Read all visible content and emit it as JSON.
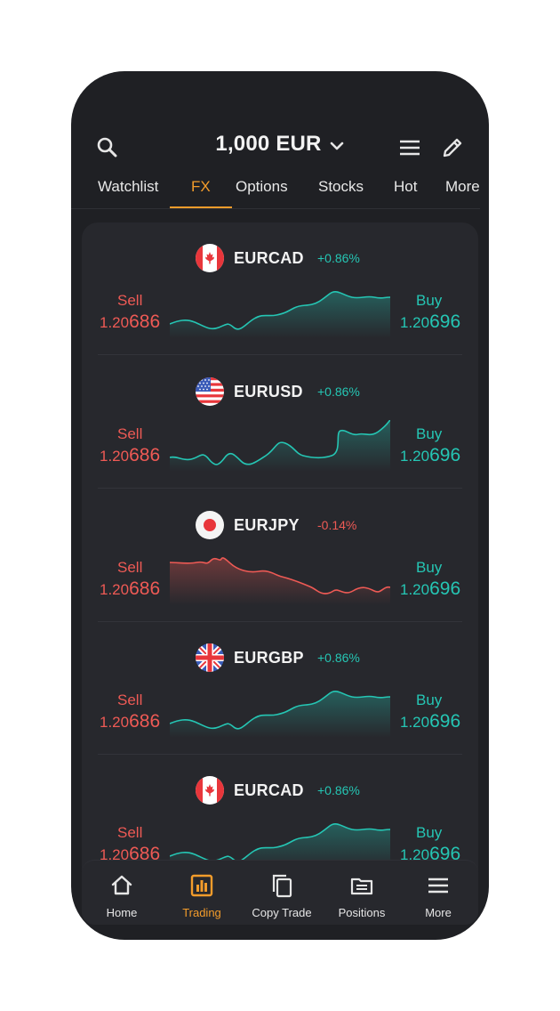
{
  "header": {
    "balance": "1,000 EUR",
    "icons": {
      "search": "search-icon",
      "menu": "menu-icon",
      "edit": "pencil-icon",
      "caret": "chevron-down-icon"
    }
  },
  "tabs": [
    {
      "label": "Watchlist"
    },
    {
      "label": "FX"
    },
    {
      "label": "Options"
    },
    {
      "label": "Stocks"
    },
    {
      "label": "Hot"
    },
    {
      "label": "More"
    }
  ],
  "active_tab": "FX",
  "pairs": [
    {
      "symbol": "EURCAD",
      "flag": "canada-flag-icon",
      "change": "+0.86%",
      "trend": "up",
      "sell_label": "Sell",
      "sell_small": "1.20",
      "sell_big": "686",
      "buy_label": "Buy",
      "buy_small": "1.20",
      "buy_big": "696"
    },
    {
      "symbol": "EURUSD",
      "flag": "usa-flag-icon",
      "change": "+0.86%",
      "trend": "up",
      "sell_label": "Sell",
      "sell_small": "1.20",
      "sell_big": "686",
      "buy_label": "Buy",
      "buy_small": "1.20",
      "buy_big": "696"
    },
    {
      "symbol": "EURJPY",
      "flag": "japan-flag-icon",
      "change": "-0.14%",
      "trend": "down",
      "sell_label": "Sell",
      "sell_small": "1.20",
      "sell_big": "686",
      "buy_label": "Buy",
      "buy_small": "1.20",
      "buy_big": "696"
    },
    {
      "symbol": "EURGBP",
      "flag": "uk-flag-icon",
      "change": "+0.86%",
      "trend": "up",
      "sell_label": "Sell",
      "sell_small": "1.20",
      "sell_big": "686",
      "buy_label": "Buy",
      "buy_small": "1.20",
      "buy_big": "696"
    },
    {
      "symbol": "EURCAD",
      "flag": "canada-flag-icon",
      "change": "+0.86%",
      "trend": "up",
      "sell_label": "Sell",
      "sell_small": "1.20",
      "sell_big": "686",
      "buy_label": "Buy",
      "buy_small": "1.20",
      "buy_big": "696"
    }
  ],
  "bottom_nav": [
    {
      "label": "Home",
      "icon": "home-icon"
    },
    {
      "label": "Trading",
      "icon": "bar-chart-icon"
    },
    {
      "label": "Copy Trade",
      "icon": "copy-icon"
    },
    {
      "label": "Positions",
      "icon": "folder-icon"
    },
    {
      "label": "More",
      "icon": "menu-icon"
    }
  ],
  "active_nav": "Trading",
  "colors": {
    "accent": "#f39c2b",
    "buy": "#25c6b4",
    "sell": "#ee5a55",
    "background": "#1f2024",
    "card": "#27282d"
  }
}
